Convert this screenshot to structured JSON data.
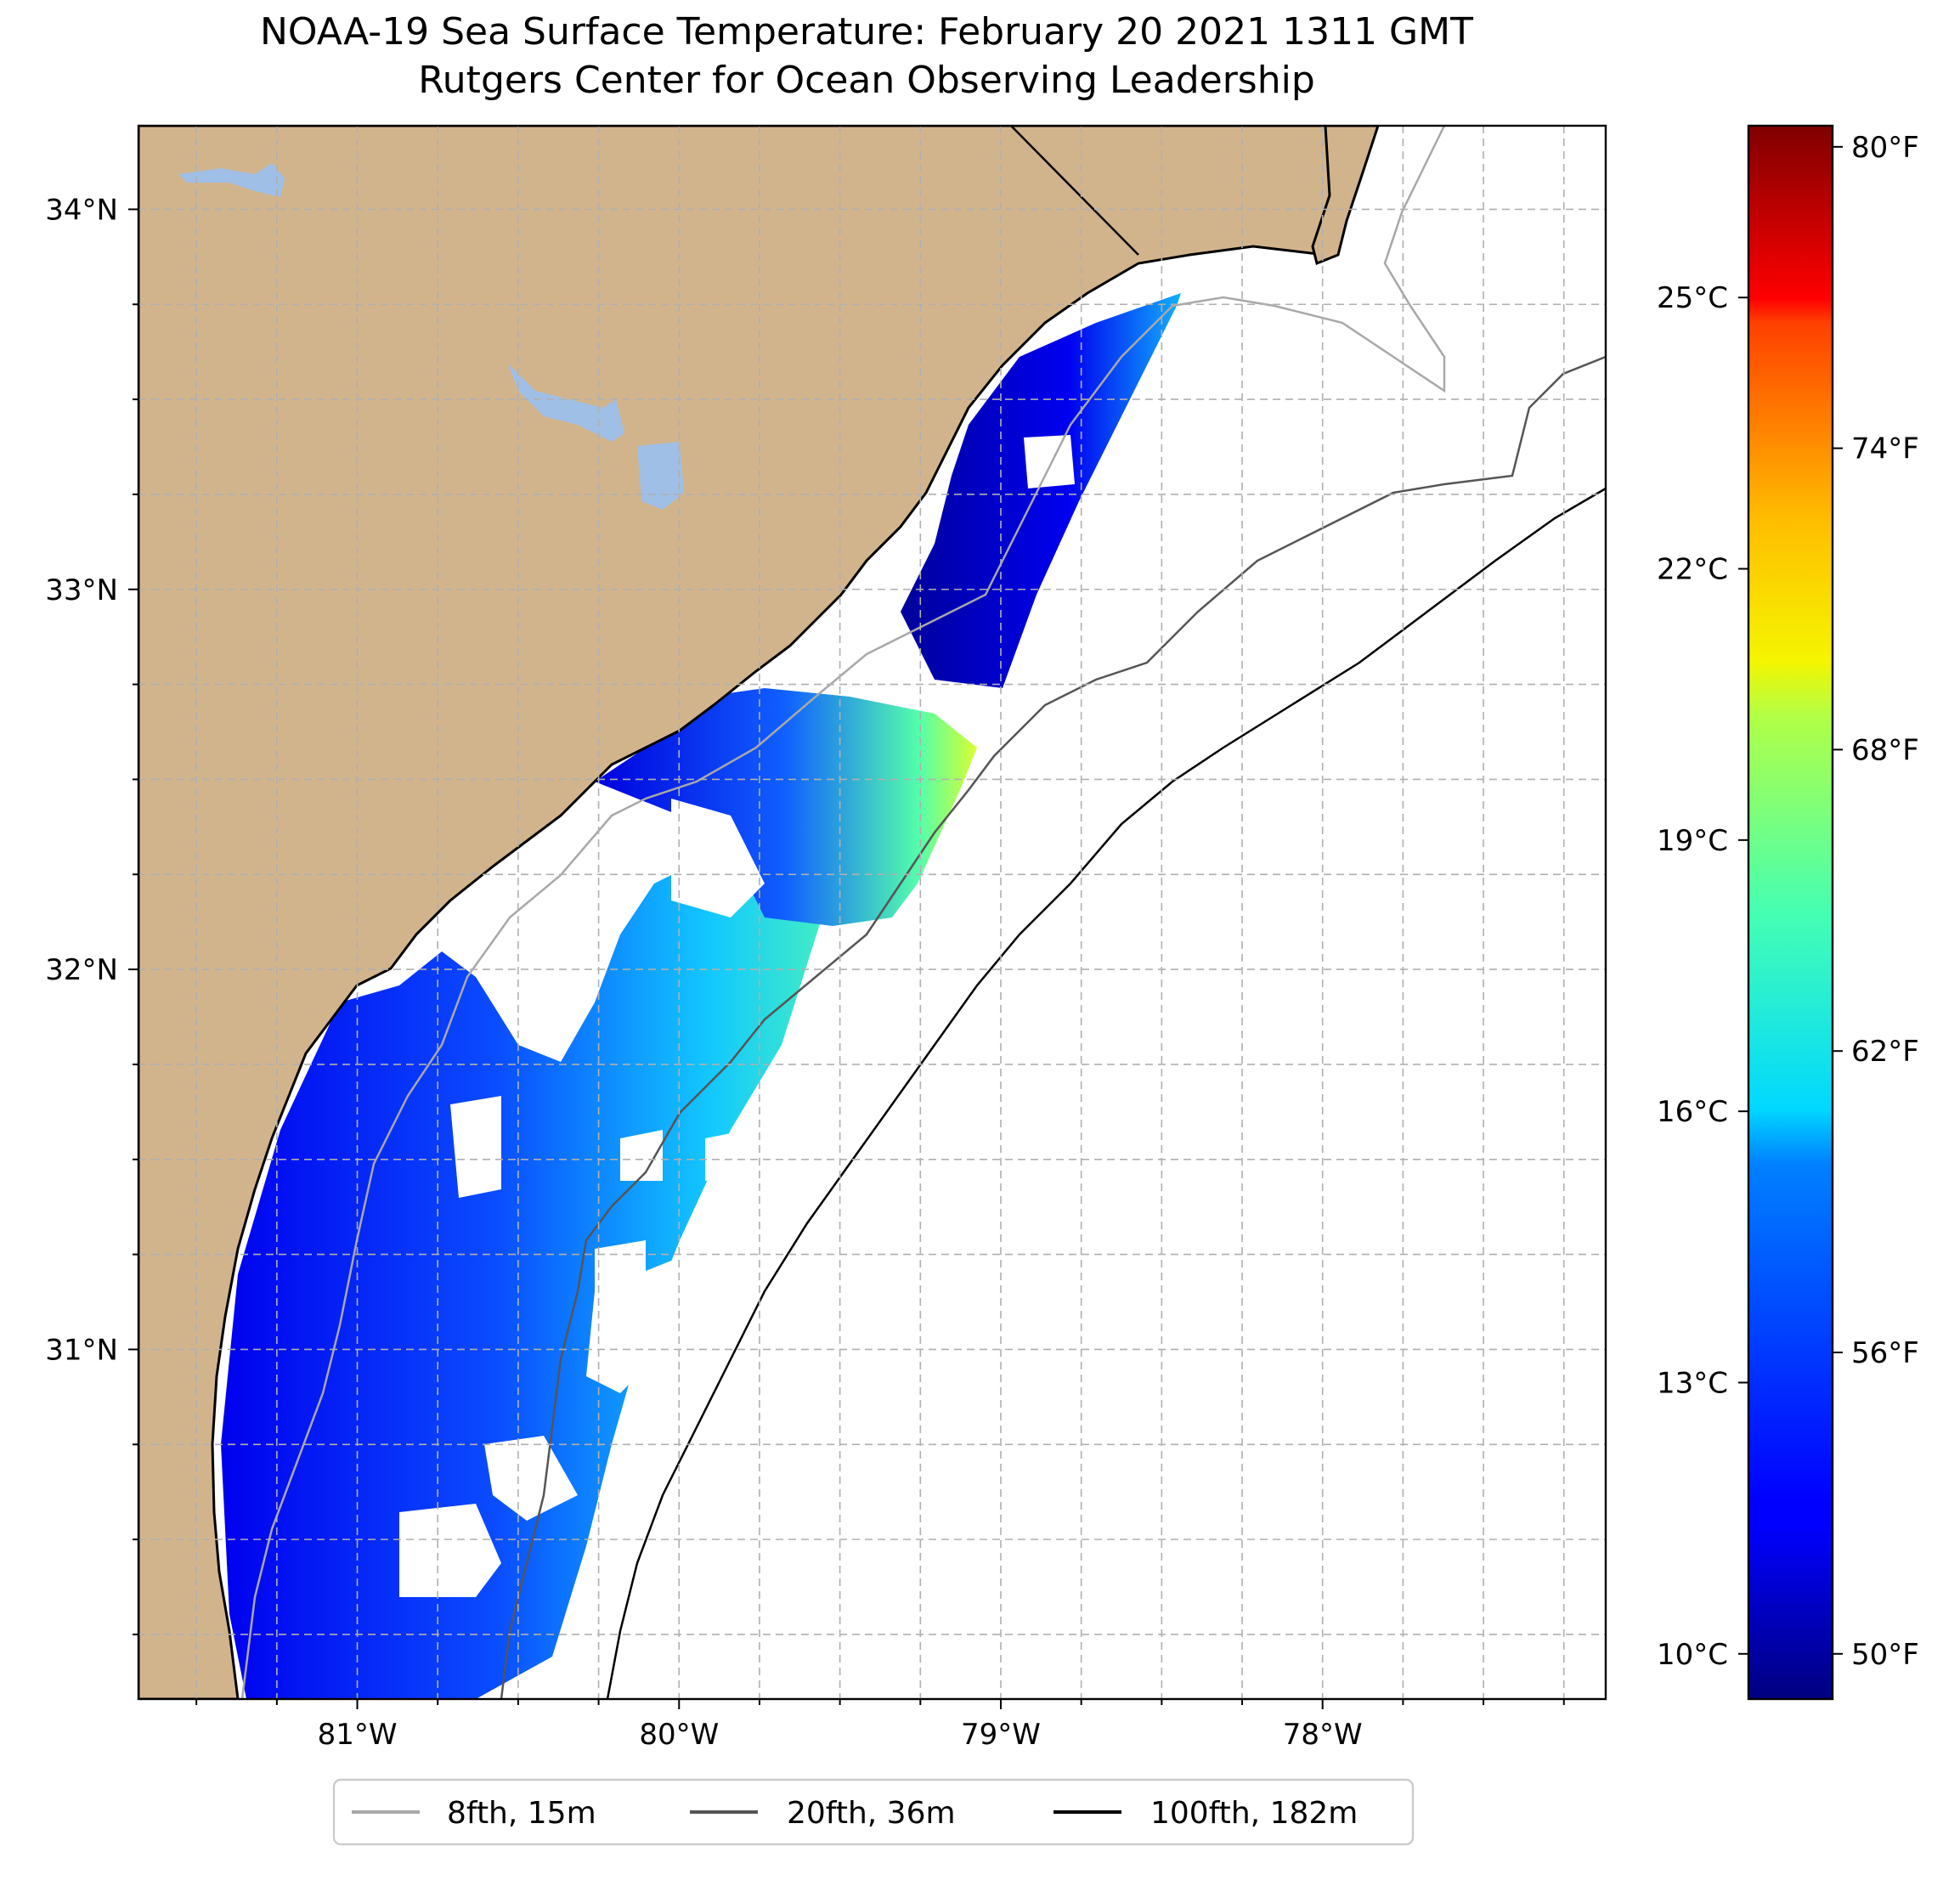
{
  "title": {
    "line1": "NOAA-19 Sea Surface Temperature: February 20 2021 1311 GMT",
    "line2": "Rutgers Center for Ocean Observing Leadership"
  },
  "map": {
    "lon_range": [
      -81.68,
      -77.12
    ],
    "lat_range": [
      30.08,
      34.22
    ],
    "lon_ticks": [
      {
        "value": -81,
        "label": "81°W"
      },
      {
        "value": -80,
        "label": "80°W"
      },
      {
        "value": -79,
        "label": "79°W"
      },
      {
        "value": -78,
        "label": "78°W"
      }
    ],
    "lat_ticks": [
      {
        "value": 31,
        "label": "31°N"
      },
      {
        "value": 32,
        "label": "32°N"
      },
      {
        "value": 33,
        "label": "33°N"
      },
      {
        "value": 34,
        "label": "34°N"
      }
    ],
    "gridlines": "dashed, every 0.25°",
    "colors": {
      "land": "#d2b48c",
      "lakes": "#9fbfe6",
      "ocean_nodata": "#ffffff"
    }
  },
  "colorbar": {
    "colormap": "jet",
    "range_c": [
      9.5,
      26.9
    ],
    "celsius_ticks": [
      {
        "value": 10,
        "label": "10°C"
      },
      {
        "value": 13,
        "label": "13°C"
      },
      {
        "value": 16,
        "label": "16°C"
      },
      {
        "value": 19,
        "label": "19°C"
      },
      {
        "value": 22,
        "label": "22°C"
      },
      {
        "value": 25,
        "label": "25°C"
      }
    ],
    "fahrenheit_ticks": [
      {
        "value": 50,
        "label": "50°F"
      },
      {
        "value": 56,
        "label": "56°F"
      },
      {
        "value": 62,
        "label": "62°F"
      },
      {
        "value": 68,
        "label": "68°F"
      },
      {
        "value": 74,
        "label": "74°F"
      },
      {
        "value": 80,
        "label": "80°F"
      }
    ]
  },
  "legend": {
    "entries": [
      {
        "label": "8fth, 15m",
        "color": "#a8a8a8"
      },
      {
        "label": "20fth, 36m",
        "color": "#555555"
      },
      {
        "label": "100fth, 182m",
        "color": "#000000"
      }
    ]
  }
}
